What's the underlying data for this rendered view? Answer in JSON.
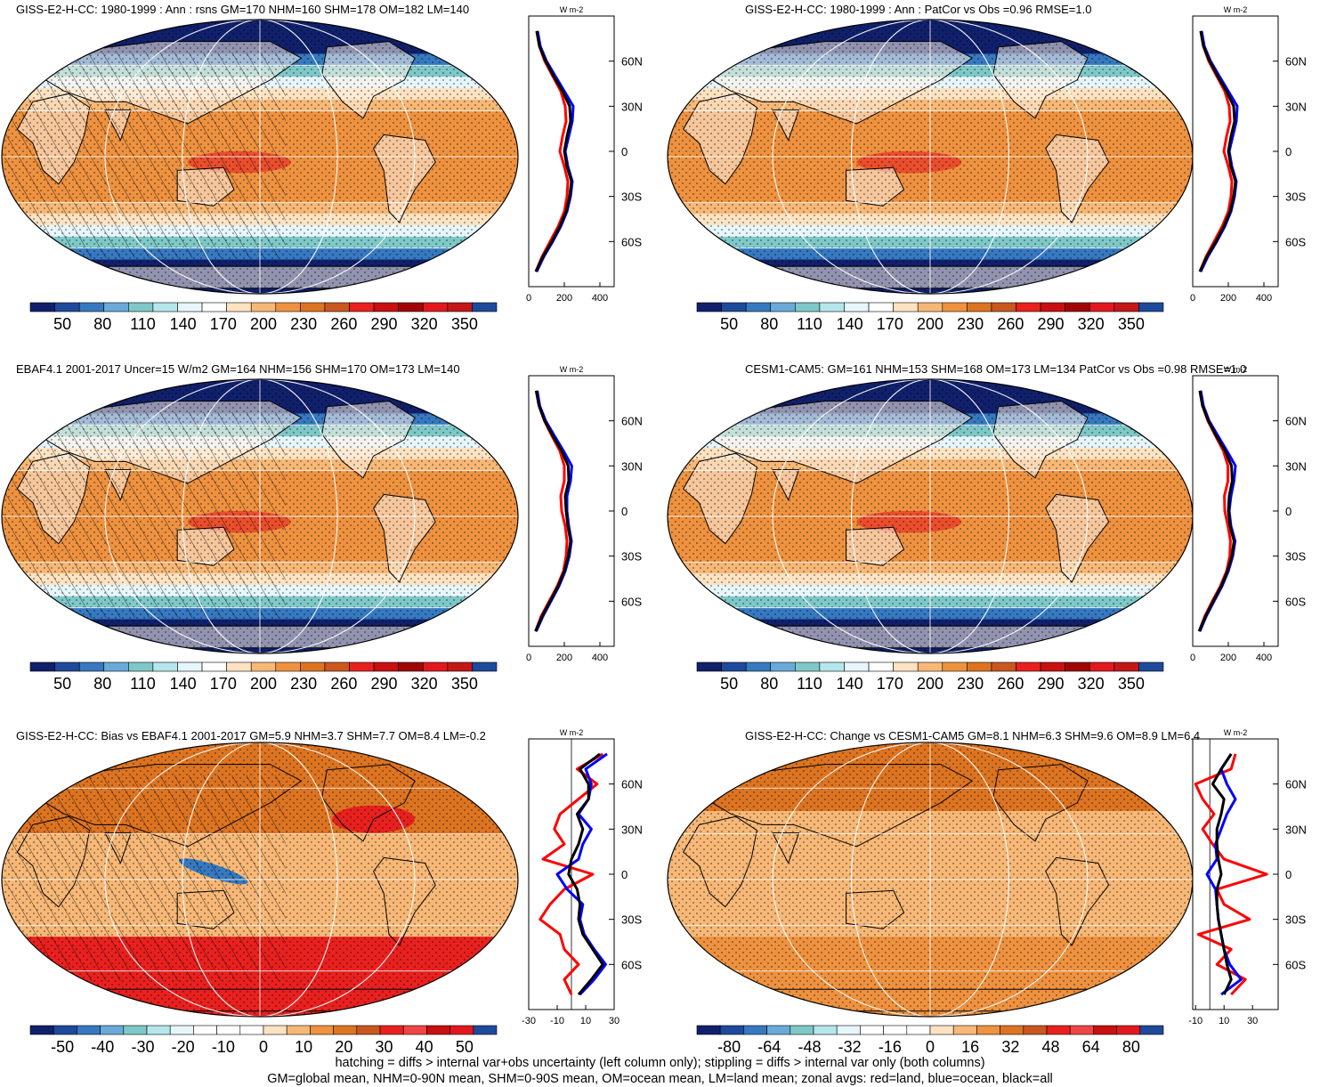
{
  "panels": [
    {
      "title": "GISS-E2-H-CC: 1980-1999 : Ann : rsns GM=170 NHM=160 SHM=178 OM=182 LM=140",
      "type": "abs",
      "hatch": true,
      "stipple": true,
      "colorbar_labels": [
        "50",
        "80",
        "110",
        "140",
        "170",
        "200",
        "230",
        "260",
        "290",
        "320",
        "350"
      ],
      "zonal": {
        "xlim": [
          0,
          480
        ],
        "xticks": [
          "0",
          "200",
          "400"
        ],
        "unit": "W m-2",
        "zero_line": false
      }
    },
    {
      "title": "GISS-E2-H-CC: 1980-1999 : Ann : PatCor vs Obs =0.96 RMSE=1.0",
      "type": "abs",
      "hatch": false,
      "stipple": true,
      "colorbar_labels": [
        "50",
        "80",
        "110",
        "140",
        "170",
        "200",
        "230",
        "260",
        "290",
        "320",
        "350"
      ],
      "zonal": {
        "xlim": [
          0,
          480
        ],
        "xticks": [
          "0",
          "200",
          "400"
        ],
        "unit": "W m-2",
        "zero_line": false
      }
    },
    {
      "title": "EBAF4.1 2001-2017 Uncer=15 W/m2 GM=164 NHM=156 SHM=170 OM=173 LM=140",
      "type": "abs",
      "hatch": true,
      "stipple": true,
      "colorbar_labels": [
        "50",
        "80",
        "110",
        "140",
        "170",
        "200",
        "230",
        "260",
        "290",
        "320",
        "350"
      ],
      "zonal": {
        "xlim": [
          0,
          480
        ],
        "xticks": [
          "0",
          "200",
          "400"
        ],
        "unit": "W m-2",
        "zero_line": false
      }
    },
    {
      "title": "CESM1-CAM5: GM=161 NHM=153 SHM=168 OM=173 LM=134 PatCor vs Obs =0.98 RMSE=1.0",
      "type": "abs",
      "hatch": false,
      "stipple": true,
      "colorbar_labels": [
        "50",
        "80",
        "110",
        "140",
        "170",
        "200",
        "230",
        "260",
        "290",
        "320",
        "350"
      ],
      "zonal": {
        "xlim": [
          0,
          480
        ],
        "xticks": [
          "0",
          "200",
          "400"
        ],
        "unit": "W m-2",
        "zero_line": false
      }
    },
    {
      "title": "GISS-E2-H-CC: Bias vs EBAF4.1 2001-2017 GM=5.9 NHM=3.7 SHM=7.7 OM=8.4 LM=-0.2",
      "type": "diff",
      "hatch": true,
      "stipple": true,
      "colorbar_labels": [
        "-50",
        "-40",
        "-30",
        "-20",
        "-10",
        "0",
        "10",
        "20",
        "30",
        "40",
        "50"
      ],
      "zonal": {
        "xlim": [
          -30,
          30
        ],
        "xticks": [
          "-30",
          "-10",
          "10",
          "30"
        ],
        "unit": "W m-2",
        "zero_line": true
      }
    },
    {
      "title": "GISS-E2-H-CC: Change vs CESM1-CAM5 GM=8.1 NHM=6.3 SHM=9.6 OM=8.9 LM=6.4",
      "type": "change",
      "hatch": false,
      "stipple": true,
      "colorbar_labels": [
        "-80",
        "-64",
        "-48",
        "-32",
        "-16",
        "0",
        "16",
        "32",
        "48",
        "64",
        "80"
      ],
      "zonal": {
        "xlim": [
          -12,
          48
        ],
        "xticks": [
          "-10",
          "10",
          "30"
        ],
        "unit": "W m-2",
        "zero_line": true
      }
    }
  ],
  "zonal_ylabels": [
    "60N",
    "30N",
    "0",
    "30S",
    "60S"
  ],
  "zonal_series": [
    {
      "name": "red=land",
      "color": "#ff0000"
    },
    {
      "name": "blue=ocean",
      "color": "#0000ff"
    },
    {
      "name": "black=all",
      "color": "#000000"
    }
  ],
  "footer": {
    "line1": "hatching = diffs > internal var+obs uncertainty (left column only); stippling = diffs > internal var only (both columns)",
    "line2": "GM=global mean, NHM=0-90N mean, SHM=0-90S mean, OM=ocean mean, LM=land mean; zonal avgs: red=land, blue=ocean, black=all"
  },
  "chart_data": {
    "type": "heatmap",
    "variable": "rsns",
    "units": "W m-2",
    "legend": "bottom",
    "abs_colorbar_labels": [
      50,
      80,
      110,
      140,
      170,
      200,
      230,
      260,
      290,
      320,
      350
    ],
    "diff_colorbar_labels": [
      -50,
      -40,
      -30,
      -20,
      -10,
      0,
      10,
      20,
      30,
      40,
      50
    ],
    "change_colorbar_labels": [
      -80,
      -64,
      -48,
      -32,
      -16,
      0,
      16,
      32,
      48,
      64,
      80
    ],
    "zonal_latitudes": [
      -80,
      -70,
      -60,
      -50,
      -40,
      -30,
      -20,
      -10,
      0,
      10,
      20,
      30,
      40,
      50,
      60,
      70,
      80
    ],
    "zonal_profiles": [
      {
        "panel": 0,
        "all": [
          40,
          80,
          130,
          175,
          210,
          230,
          240,
          215,
          200,
          215,
          235,
          230,
          190,
          140,
          95,
          60,
          45
        ],
        "land": [
          40,
          75,
          120,
          165,
          200,
          215,
          220,
          200,
          175,
          190,
          210,
          205,
          180,
          135,
          90,
          60,
          45
        ],
        "ocean": [
          45,
          85,
          135,
          180,
          215,
          235,
          245,
          220,
          205,
          225,
          245,
          250,
          200,
          150,
          100,
          65,
          50
        ]
      },
      {
        "panel": 1,
        "all": [
          40,
          80,
          130,
          175,
          210,
          230,
          240,
          215,
          200,
          215,
          235,
          230,
          190,
          140,
          95,
          60,
          45
        ],
        "land": [
          40,
          75,
          120,
          165,
          200,
          215,
          220,
          200,
          175,
          190,
          210,
          205,
          180,
          135,
          90,
          60,
          45
        ],
        "ocean": [
          45,
          85,
          135,
          180,
          215,
          235,
          245,
          220,
          205,
          225,
          245,
          250,
          200,
          150,
          100,
          65,
          50
        ]
      },
      {
        "panel": 2,
        "all": [
          38,
          75,
          120,
          165,
          200,
          222,
          235,
          220,
          210,
          205,
          225,
          222,
          185,
          135,
          90,
          58,
          42
        ],
        "land": [
          38,
          70,
          115,
          160,
          195,
          210,
          215,
          205,
          185,
          180,
          200,
          200,
          175,
          130,
          88,
          58,
          42
        ],
        "ocean": [
          42,
          80,
          125,
          170,
          205,
          228,
          240,
          225,
          215,
          215,
          235,
          242,
          195,
          145,
          95,
          62,
          48
        ]
      },
      {
        "panel": 3,
        "all": [
          36,
          72,
          115,
          160,
          195,
          220,
          232,
          210,
          200,
          205,
          222,
          218,
          182,
          132,
          88,
          55,
          40
        ],
        "land": [
          36,
          68,
          110,
          155,
          190,
          208,
          212,
          198,
          180,
          178,
          198,
          198,
          172,
          128,
          85,
          55,
          40
        ],
        "ocean": [
          40,
          76,
          120,
          165,
          200,
          225,
          238,
          215,
          205,
          215,
          232,
          240,
          192,
          142,
          92,
          60,
          45
        ]
      },
      {
        "panel": 4,
        "all": [
          5,
          14,
          22,
          15,
          8,
          5,
          6,
          4,
          -2,
          0,
          5,
          8,
          4,
          12,
          12,
          6,
          20
        ],
        "land": [
          0,
          -5,
          5,
          -5,
          -8,
          -22,
          -15,
          -5,
          15,
          -20,
          -5,
          -12,
          -8,
          5,
          18,
          4,
          22
        ],
        "ocean": [
          6,
          16,
          24,
          16,
          9,
          6,
          8,
          -3,
          -10,
          5,
          8,
          14,
          5,
          12,
          14,
          10,
          25
        ]
      },
      {
        "panel": 5,
        "all": [
          10,
          15,
          12,
          10,
          8,
          6,
          5,
          5,
          8,
          6,
          5,
          5,
          8,
          10,
          2,
          8,
          15
        ],
        "land": [
          15,
          25,
          5,
          15,
          -8,
          28,
          10,
          5,
          40,
          10,
          2,
          -5,
          3,
          -5,
          -10,
          15,
          18
        ],
        "ocean": [
          8,
          22,
          14,
          10,
          8,
          6,
          5,
          4,
          -2,
          5,
          4,
          8,
          12,
          18,
          12,
          8,
          15
        ]
      }
    ]
  }
}
